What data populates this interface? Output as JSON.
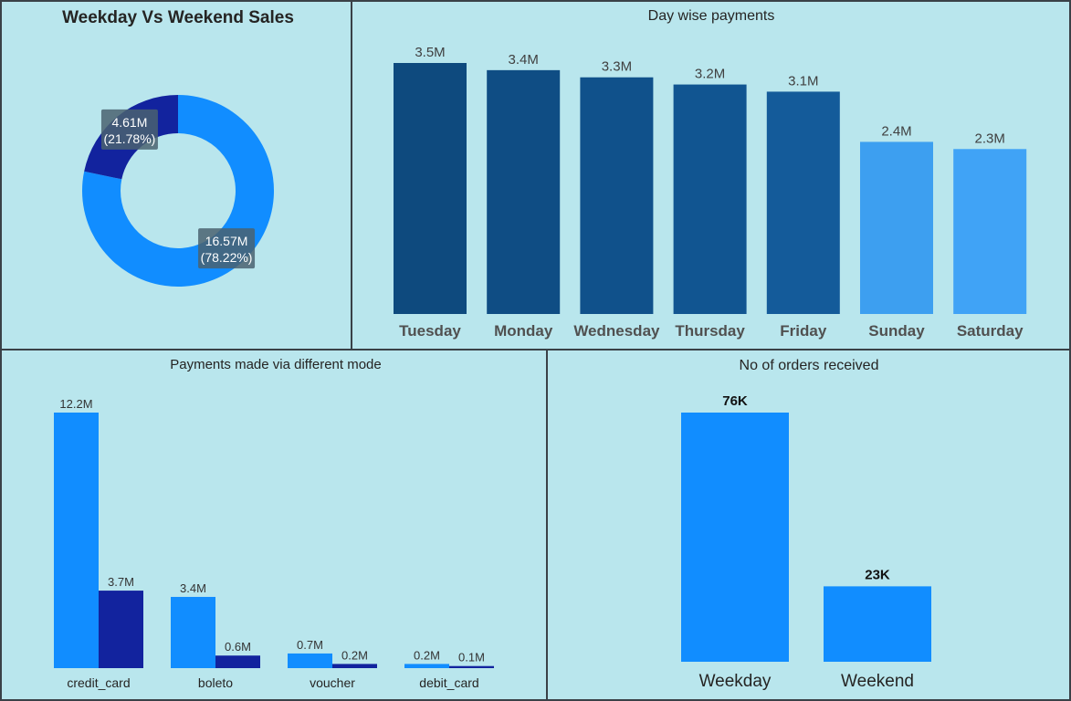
{
  "chart_data": [
    {
      "type": "pie",
      "title": "Weekday Vs Weekend Sales",
      "slices": [
        {
          "value_label": "16.57M",
          "pct_label": "(78.22%)",
          "value": 16.57,
          "percent": 78.22,
          "color": "#118dff"
        },
        {
          "value_label": "4.61M",
          "pct_label": "(21.78%)",
          "value": 4.61,
          "percent": 21.78,
          "color": "#12239e"
        }
      ]
    },
    {
      "type": "bar",
      "title": "Day wise payments",
      "categories": [
        "Tuesday",
        "Monday",
        "Wednesday",
        "Thursday",
        "Friday",
        "Sunday",
        "Saturday"
      ],
      "values": [
        3.5,
        3.4,
        3.3,
        3.2,
        3.1,
        2.4,
        2.3
      ],
      "value_labels": [
        "3.5M",
        "3.4M",
        "3.3M",
        "3.2M",
        "3.1M",
        "2.4M",
        "2.3M"
      ],
      "colors": [
        "#0e4a7e",
        "#0f4d84",
        "#10518b",
        "#115591",
        "#145b9a",
        "#3d9ff0",
        "#40a3f6"
      ],
      "ylim": [
        0,
        3.5
      ]
    },
    {
      "type": "bar",
      "title": "Payments made via different mode",
      "categories": [
        "credit_card",
        "boleto",
        "voucher",
        "debit_card"
      ],
      "series": [
        {
          "values": [
            12.2,
            3.4,
            0.7,
            0.2
          ],
          "value_labels": [
            "12.2M",
            "3.4M",
            "0.7M",
            "0.2M"
          ],
          "color": "#118dff"
        },
        {
          "values": [
            3.7,
            0.6,
            0.2,
            0.1
          ],
          "value_labels": [
            "3.7M",
            "0.6M",
            "0.2M",
            "0.1M"
          ],
          "color": "#12239e"
        }
      ],
      "ylim": [
        0,
        12.2
      ]
    },
    {
      "type": "bar",
      "title": "No of orders received",
      "categories": [
        "Weekday",
        "Weekend"
      ],
      "values": [
        76,
        23
      ],
      "value_labels": [
        "76K",
        "23K"
      ],
      "color": "#118dff",
      "ylim": [
        0,
        76
      ]
    }
  ]
}
